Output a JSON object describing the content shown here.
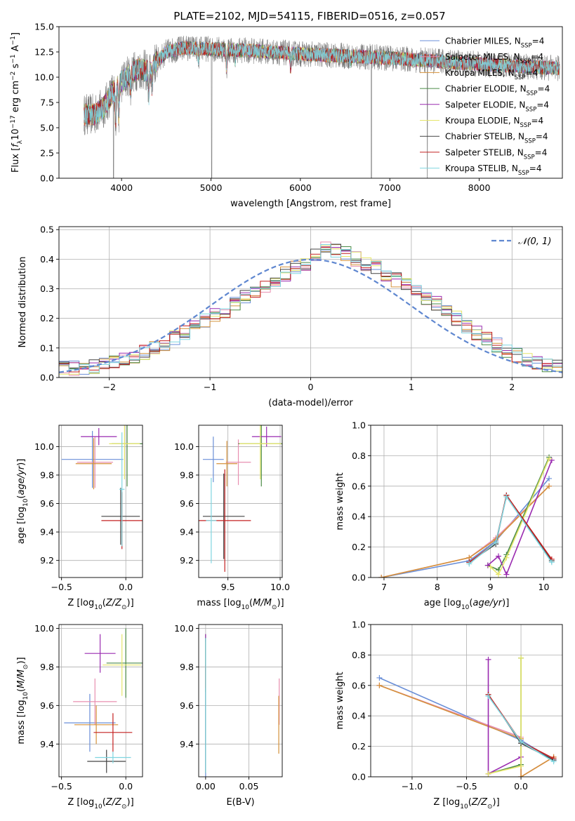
{
  "figure_title": "PLATE=2102, MJD=54115, FIBERID=0516, z=0.057",
  "model_colors": [
    "#6a8fd8",
    "#e88fb0",
    "#d4913a",
    "#4b8b47",
    "#9a2bb0",
    "#e6e66a",
    "#444444",
    "#c42020",
    "#7fd6e0"
  ],
  "chart_data": [
    {
      "id": "spectrum",
      "type": "line",
      "title": "PLATE=2102, MJD=54115, FIBERID=0516, z=0.057",
      "xlabel": "wavelength [Angstrom, rest frame]",
      "ylabel": "Flux [f_λ10^-17 erg cm^-2 s^-1 A^-1]",
      "xlim": [
        3300,
        8930
      ],
      "ylim": [
        0,
        15
      ],
      "xticks": [
        4000,
        5000,
        6000,
        7000,
        8000
      ],
      "yticks": [
        0.0,
        2.5,
        5.0,
        7.5,
        10.0,
        12.5,
        15.0
      ],
      "xtick_labels": [
        "4000",
        "5000",
        "6000",
        "7000",
        "8000"
      ],
      "ytick_labels": [
        "0.0",
        "2.5",
        "5.0",
        "7.5",
        "10.0",
        "12.5",
        "15.0"
      ],
      "grid": false,
      "legend_position": "right",
      "data_range": [
        3580,
        8900
      ],
      "continuum": {
        "x": [
          3580,
          3700,
          3800,
          3900,
          4000,
          4100,
          4200,
          4300,
          4400,
          4500,
          4700,
          5000,
          5500,
          6000,
          6500,
          7000,
          7300,
          7500,
          7800,
          8200,
          8600,
          8900
        ],
        "y": [
          6.3,
          6.3,
          7.0,
          8.5,
          9.5,
          10.4,
          10.8,
          10.6,
          11.6,
          12.5,
          12.9,
          12.8,
          12.6,
          12.3,
          12.1,
          11.9,
          11.7,
          11.6,
          11.4,
          11.2,
          11.0,
          10.9
        ]
      },
      "absorption_lines": [
        {
          "x": 3934,
          "depth": 3.2
        },
        {
          "x": 3969,
          "depth": 3.0
        },
        {
          "x": 4102,
          "depth": 1.8
        },
        {
          "x": 4304,
          "depth": 2.6
        },
        {
          "x": 4340,
          "depth": 1.8
        },
        {
          "x": 4861,
          "depth": 1.2
        },
        {
          "x": 5175,
          "depth": 1.8
        },
        {
          "x": 5270,
          "depth": 1.0
        },
        {
          "x": 5892,
          "depth": 1.4
        },
        {
          "x": 6563,
          "depth": 0.6
        }
      ],
      "artifacts": [
        {
          "x": 5008,
          "y": 0
        },
        {
          "x": 6794,
          "y": 0
        },
        {
          "x": 7420,
          "y": 0
        },
        {
          "x": 3910,
          "y": 0
        }
      ],
      "series": [
        {
          "name": "Chabrier MILES",
          "label": "Chabrier MILES, N",
          "sub": "SSP",
          "suffix": "=4"
        },
        {
          "name": "Salpeter MILES",
          "label": "Salpeter MILES, N",
          "sub": "SSP",
          "suffix": "=4"
        },
        {
          "name": "Kroupa MILES",
          "label": "Kroupa MILES, N",
          "sub": "SSP",
          "suffix": "=4"
        },
        {
          "name": "Chabrier ELODIE",
          "label": "Chabrier ELODIE, N",
          "sub": "SSP",
          "suffix": "=4"
        },
        {
          "name": "Salpeter ELODIE",
          "label": "Salpeter ELODIE, N",
          "sub": "SSP",
          "suffix": "=4"
        },
        {
          "name": "Kroupa ELODIE",
          "label": "Kroupa ELODIE, N",
          "sub": "SSP",
          "suffix": "=4"
        },
        {
          "name": "Chabrier STELIB",
          "label": "Chabrier STELIB, N",
          "sub": "SSP",
          "suffix": "=4"
        },
        {
          "name": "Salpeter STELIB",
          "label": "Salpeter STELIB, N",
          "sub": "SSP",
          "suffix": "=4"
        },
        {
          "name": "Kroupa STELIB",
          "label": "Kroupa STELIB, N",
          "sub": "SSP",
          "suffix": "=4"
        }
      ]
    },
    {
      "id": "residuals",
      "type": "line",
      "xlabel": "(data-model)/error",
      "ylabel": "Normed distribution",
      "xlim": [
        -2.5,
        2.5
      ],
      "ylim": [
        0,
        0.51
      ],
      "xticks": [
        -2,
        -1,
        0,
        1,
        2
      ],
      "yticks": [
        0.0,
        0.1,
        0.2,
        0.3,
        0.4,
        0.5
      ],
      "xtick_labels": [
        "−2",
        "−1",
        "0",
        "1",
        "2"
      ],
      "ytick_labels": [
        "0.0",
        "0.1",
        "0.2",
        "0.3",
        "0.4",
        "0.5"
      ],
      "grid": true,
      "legend_position": "top-right",
      "legend": "𝒩(0, 1)",
      "normal_curve": {
        "mean": 0,
        "sigma": 1
      },
      "bin_width": 0.1,
      "bin_start": -2.5,
      "histogram_base": [
        0.03,
        0.032,
        0.035,
        0.038,
        0.042,
        0.05,
        0.06,
        0.072,
        0.085,
        0.1,
        0.115,
        0.135,
        0.15,
        0.175,
        0.195,
        0.215,
        0.225,
        0.25,
        0.27,
        0.29,
        0.305,
        0.33,
        0.35,
        0.37,
        0.38,
        0.42,
        0.44,
        0.43,
        0.42,
        0.4,
        0.38,
        0.37,
        0.35,
        0.33,
        0.32,
        0.29,
        0.27,
        0.25,
        0.225,
        0.2,
        0.175,
        0.15,
        0.13,
        0.11,
        0.09,
        0.075,
        0.06,
        0.05,
        0.04,
        0.035
      ]
    },
    {
      "id": "age_vs_Z",
      "type": "scatter",
      "xlabel": "Z [log10(Z/Z⊙)]",
      "ylabel": "age  [log10(age/yr)]",
      "xlim": [
        -0.52,
        0.13
      ],
      "ylim": [
        9.08,
        10.15
      ],
      "xticks": [
        -0.5,
        0.0
      ],
      "yticks": [
        9.2,
        9.4,
        9.6,
        9.8,
        10.0
      ],
      "xtick_labels": [
        "−0.5",
        "0.0"
      ],
      "ytick_labels": [
        "9.2",
        "9.4",
        "9.6",
        "9.8",
        "10.0"
      ],
      "grid": true,
      "points": [
        {
          "x": -0.26,
          "y": 9.91,
          "xerr": 0.24,
          "yerr": 0.2,
          "color": 0
        },
        {
          "x": -0.24,
          "y": 9.89,
          "xerr": 0.14,
          "yerr": 0.18,
          "color": 1
        },
        {
          "x": -0.25,
          "y": 9.88,
          "xerr": 0.14,
          "yerr": 0.18,
          "color": 2
        },
        {
          "x": 0.01,
          "y": 10.02,
          "xerr": 0.12,
          "yerr": 0.3,
          "color": 3
        },
        {
          "x": -0.21,
          "y": 10.07,
          "xerr": 0.14,
          "yerr": 0.06,
          "color": 4
        },
        {
          "x": -0.01,
          "y": 10.02,
          "xerr": 0.12,
          "yerr": 0.25,
          "color": 5
        },
        {
          "x": -0.04,
          "y": 9.51,
          "xerr": 0.15,
          "yerr": 0.2,
          "color": 6
        },
        {
          "x": -0.03,
          "y": 9.48,
          "xerr": 0.16,
          "yerr": 0.2,
          "color": 7
        },
        {
          "x": -0.03,
          "y": 9.7,
          "xerr": 0.02,
          "yerr": 0.4,
          "color": 8
        }
      ]
    },
    {
      "id": "age_vs_mass",
      "type": "scatter",
      "xlabel": "mass [log10(M/M⊙)]",
      "ylabel": "",
      "xlim": [
        9.22,
        10.02
      ],
      "ylim": [
        9.08,
        10.15
      ],
      "xticks": [
        9.5,
        10.0
      ],
      "yticks": [
        9.2,
        9.4,
        9.6,
        9.8,
        10.0
      ],
      "xtick_labels": [
        "9.5",
        "10.0"
      ],
      "ytick_labels": [
        "9.2",
        "9.4",
        "9.6",
        "9.8",
        "10.0"
      ],
      "grid": true,
      "points": [
        {
          "x": 9.36,
          "y": 9.91,
          "xerr": 0.1,
          "yerr": 0.16,
          "color": 0
        },
        {
          "x": 9.6,
          "y": 9.89,
          "xerr": 0.12,
          "yerr": 0.16,
          "color": 1
        },
        {
          "x": 9.49,
          "y": 9.88,
          "xerr": 0.1,
          "yerr": 0.16,
          "color": 2
        },
        {
          "x": 9.82,
          "y": 10.02,
          "xerr": 0.22,
          "yerr": 0.3,
          "color": 3
        },
        {
          "x": 9.87,
          "y": 10.07,
          "xerr": 0.14,
          "yerr": 0.07,
          "color": 4
        },
        {
          "x": 9.81,
          "y": 10.02,
          "xerr": 0.2,
          "yerr": 0.25,
          "color": 5
        },
        {
          "x": 9.46,
          "y": 9.51,
          "xerr": 0.2,
          "yerr": 0.3,
          "color": 6
        },
        {
          "x": 9.47,
          "y": 9.48,
          "xerr": 0.25,
          "yerr": 0.36,
          "color": 7
        },
        {
          "x": 9.34,
          "y": 9.48,
          "xerr": 0.05,
          "yerr": 0.3,
          "color": 8
        }
      ]
    },
    {
      "id": "weight_vs_age",
      "type": "line",
      "xlabel": "age  [log10(age/yr)]",
      "ylabel": "mass weight",
      "xlim": [
        6.75,
        10.35
      ],
      "ylim": [
        0,
        1.0
      ],
      "xticks": [
        7,
        8,
        9,
        10
      ],
      "yticks": [
        0.0,
        0.2,
        0.4,
        0.6,
        0.8,
        1.0
      ],
      "xtick_labels": [
        "7",
        "8",
        "9",
        "10"
      ],
      "ytick_labels": [
        "0.0",
        "0.2",
        "0.4",
        "0.6",
        "0.8",
        "1.0"
      ],
      "grid": true,
      "series": [
        {
          "color": 0,
          "x": [
            6.95,
            8.6,
            9.1,
            10.1
          ],
          "y": [
            0.0,
            0.11,
            0.24,
            0.65
          ]
        },
        {
          "color": 1,
          "x": [
            6.95,
            8.6,
            9.1,
            10.1
          ],
          "y": [
            0.0,
            0.13,
            0.26,
            0.6
          ]
        },
        {
          "color": 2,
          "x": [
            6.95,
            8.6,
            9.1,
            10.1
          ],
          "y": [
            0.0,
            0.13,
            0.25,
            0.6
          ]
        },
        {
          "color": 3,
          "x": [
            8.95,
            9.15,
            9.3,
            10.1
          ],
          "y": [
            0.08,
            0.05,
            0.15,
            0.79
          ]
        },
        {
          "color": 4,
          "x": [
            8.95,
            9.15,
            9.3,
            10.15
          ],
          "y": [
            0.08,
            0.14,
            0.02,
            0.77
          ]
        },
        {
          "color": 5,
          "x": [
            9.0,
            9.15,
            9.3,
            10.1
          ],
          "y": [
            0.07,
            0.02,
            0.13,
            0.78
          ]
        },
        {
          "color": 6,
          "x": [
            8.6,
            9.1,
            9.3,
            10.15
          ],
          "y": [
            0.1,
            0.22,
            0.54,
            0.11
          ]
        },
        {
          "color": 7,
          "x": [
            8.6,
            9.1,
            9.3,
            10.15
          ],
          "y": [
            0.1,
            0.23,
            0.54,
            0.12
          ]
        },
        {
          "color": 8,
          "x": [
            8.6,
            9.1,
            9.3,
            10.15
          ],
          "y": [
            0.09,
            0.23,
            0.53,
            0.1
          ]
        }
      ]
    },
    {
      "id": "mass_vs_Z",
      "type": "scatter",
      "xlabel": "Z [log10(Z/Z⊙)]",
      "ylabel": "mass [log10(M/M⊙)]",
      "xlim": [
        -0.52,
        0.13
      ],
      "ylim": [
        9.23,
        10.02
      ],
      "xticks": [
        -0.5,
        0.0
      ],
      "yticks": [
        9.4,
        9.6,
        9.8,
        10.0
      ],
      "xtick_labels": [
        "−0.5",
        "0.0"
      ],
      "ytick_labels": [
        "9.4",
        "9.6",
        "9.8",
        "10.0"
      ],
      "grid": true,
      "points": [
        {
          "x": -0.28,
          "y": 9.51,
          "xerr": 0.2,
          "yerr": 0.15,
          "color": 0
        },
        {
          "x": -0.24,
          "y": 9.62,
          "xerr": 0.17,
          "yerr": 0.12,
          "color": 1
        },
        {
          "x": -0.23,
          "y": 9.5,
          "xerr": 0.17,
          "yerr": 0.1,
          "color": 2
        },
        {
          "x": 0.0,
          "y": 9.82,
          "xerr": 0.15,
          "yerr": 0.18,
          "color": 3
        },
        {
          "x": -0.2,
          "y": 9.87,
          "xerr": 0.12,
          "yerr": 0.1,
          "color": 4
        },
        {
          "x": -0.03,
          "y": 9.81,
          "xerr": 0.15,
          "yerr": 0.16,
          "color": 5
        },
        {
          "x": -0.15,
          "y": 9.31,
          "xerr": 0.15,
          "yerr": 0.06,
          "color": 6
        },
        {
          "x": -0.1,
          "y": 9.46,
          "xerr": 0.15,
          "yerr": 0.1,
          "color": 7
        },
        {
          "x": -0.1,
          "y": 9.33,
          "xerr": 0.14,
          "yerr": 0.03,
          "color": 8
        }
      ]
    },
    {
      "id": "mass_vs_ebv",
      "type": "scatter",
      "xlabel": "E(B-V)",
      "ylabel": "",
      "xlim": [
        -0.008,
        0.0885
      ],
      "ylim": [
        9.23,
        10.02
      ],
      "xticks": [
        0.0,
        0.05
      ],
      "yticks": [
        9.4,
        9.6,
        9.8,
        10.0
      ],
      "xtick_labels": [
        "0.00",
        "0.05"
      ],
      "ytick_labels": [
        "9.4",
        "9.6",
        "9.8",
        "10.0"
      ],
      "grid": true,
      "points": [
        {
          "x": 0.0,
          "y": 9.5,
          "xerr": 0.0,
          "yerr": 0.3,
          "color": 0
        },
        {
          "x": 0.085,
          "y": 9.62,
          "xerr": 0.0,
          "yerr": 0.12,
          "color": 1
        },
        {
          "x": 0.0845,
          "y": 9.5,
          "xerr": 0.0,
          "yerr": 0.15,
          "color": 2
        },
        {
          "x": 0.0,
          "y": 9.82,
          "xerr": 0.0,
          "yerr": 0.15,
          "color": 3
        },
        {
          "x": 0.0,
          "y": 9.87,
          "xerr": 0.0,
          "yerr": 0.1,
          "color": 4
        },
        {
          "x": 0.0,
          "y": 9.81,
          "xerr": 0.0,
          "yerr": 0.12,
          "color": 5
        },
        {
          "x": 0.0,
          "y": 9.6,
          "xerr": 0.0,
          "yerr": 0.35,
          "color": 6
        },
        {
          "x": 0.0,
          "y": 9.75,
          "xerr": 0.0,
          "yerr": 0.06,
          "color": 7
        },
        {
          "x": 0.0,
          "y": 9.6,
          "xerr": 0.0,
          "yerr": 0.35,
          "color": 8
        }
      ]
    },
    {
      "id": "weight_vs_Z",
      "type": "line",
      "xlabel": "Z [log10(Z/Z⊙)]",
      "ylabel": "mass weight",
      "xlim": [
        -1.38,
        0.38
      ],
      "ylim": [
        0,
        1.0
      ],
      "xticks": [
        -1.0,
        -0.5,
        0.0
      ],
      "yticks": [
        0.0,
        0.2,
        0.4,
        0.6,
        0.8,
        1.0
      ],
      "xtick_labels": [
        "−1.0",
        "−0.5",
        "0.0"
      ],
      "ytick_labels": [
        "0.0",
        "0.2",
        "0.4",
        "0.6",
        "0.8",
        "1.0"
      ],
      "grid": true,
      "series": [
        {
          "color": 0,
          "x": [
            -1.3,
            0.0,
            0.3
          ],
          "y": [
            0.65,
            0.24,
            0.11
          ]
        },
        {
          "color": 1,
          "x": [
            -1.3,
            0.0,
            0.0,
            0.3
          ],
          "y": [
            0.6,
            0.26,
            0.0,
            0.13
          ]
        },
        {
          "color": 2,
          "x": [
            -1.3,
            0.0,
            0.0,
            0.3
          ],
          "y": [
            0.6,
            0.25,
            0.0,
            0.13
          ]
        },
        {
          "color": 3,
          "x": [
            -0.3,
            0.0,
            0.0
          ],
          "y": [
            0.02,
            0.08,
            0.78
          ]
        },
        {
          "color": 4,
          "x": [
            -0.3,
            -0.3,
            0.0
          ],
          "y": [
            0.77,
            0.02,
            0.13
          ]
        },
        {
          "color": 5,
          "x": [
            -0.3,
            0.0,
            0.0
          ],
          "y": [
            0.02,
            0.07,
            0.78
          ]
        },
        {
          "color": 6,
          "x": [
            -0.3,
            0.0,
            0.3
          ],
          "y": [
            0.54,
            0.22,
            0.11
          ]
        },
        {
          "color": 7,
          "x": [
            -0.3,
            0.0,
            0.3
          ],
          "y": [
            0.54,
            0.23,
            0.12
          ]
        },
        {
          "color": 8,
          "x": [
            -0.3,
            0.0,
            0.3
          ],
          "y": [
            0.53,
            0.23,
            0.1
          ]
        }
      ]
    }
  ]
}
